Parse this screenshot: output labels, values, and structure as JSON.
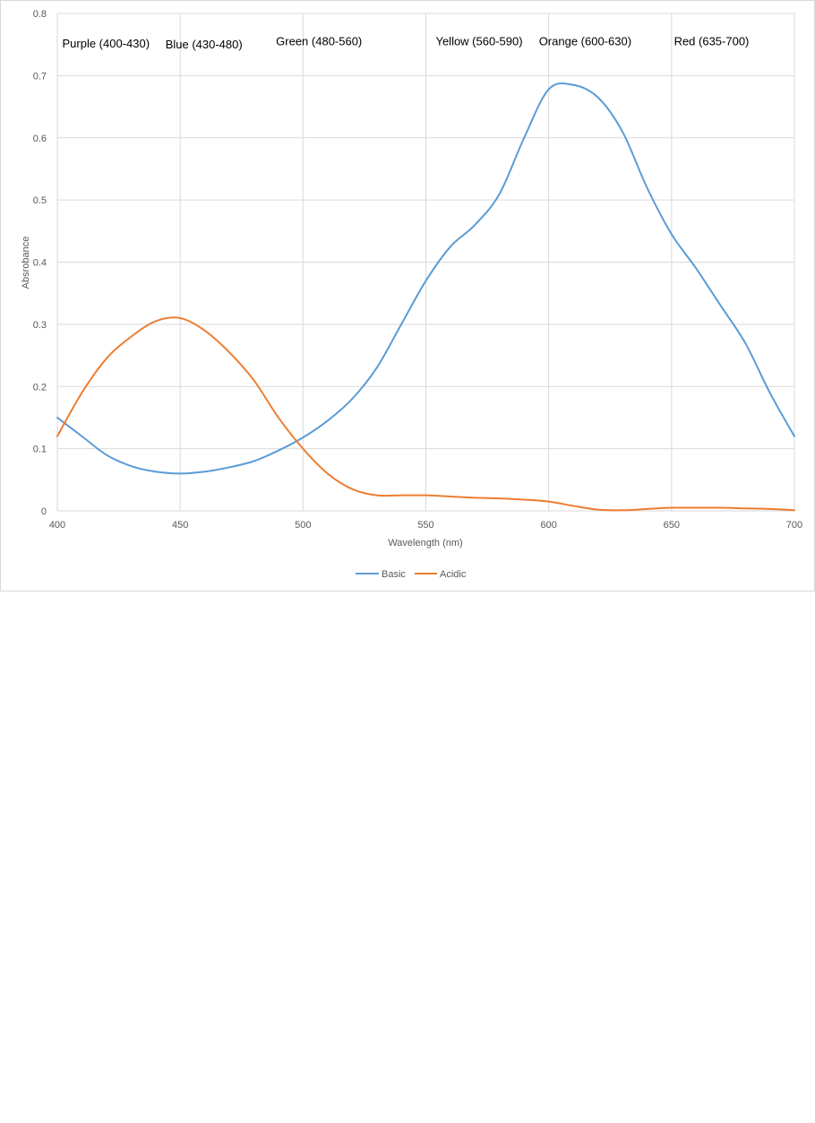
{
  "chart_data": {
    "type": "line",
    "title": "",
    "xlabel": "Wavelength (nm)",
    "ylabel": "Absrobance",
    "xlim": [
      400,
      700
    ],
    "ylim": [
      0,
      0.8
    ],
    "x_ticks": [
      400,
      450,
      500,
      550,
      600,
      650,
      700
    ],
    "y_ticks": [
      0,
      0.1,
      0.2,
      0.3,
      0.4,
      0.5,
      0.6,
      0.7,
      0.8
    ],
    "x_tick_labels": [
      "400",
      "450",
      "500",
      "550",
      "600",
      "650",
      "700"
    ],
    "y_tick_labels": [
      "0",
      "0.1",
      "0.2",
      "0.3",
      "0.4",
      "0.5",
      "0.6",
      "0.7",
      "0.8"
    ],
    "grid": true,
    "legend_position": "bottom",
    "annotations": [
      {
        "text": "Purple (400-430)",
        "x": 402,
        "y": 0.745
      },
      {
        "text": "Blue (430-480)",
        "x": 444,
        "y": 0.744
      },
      {
        "text": "Green (480-560)",
        "x": 489,
        "y": 0.749
      },
      {
        "text": "Yellow (560-590)",
        "x": 554,
        "y": 0.749
      },
      {
        "text": "Orange (600-630)",
        "x": 596,
        "y": 0.749
      },
      {
        "text": "Red (635-700)",
        "x": 651,
        "y": 0.749
      }
    ],
    "series": [
      {
        "name": "Basic",
        "color": "#5b9bd5",
        "x": [
          400,
          410,
          420,
          430,
          440,
          450,
          460,
          470,
          480,
          490,
          500,
          510,
          520,
          530,
          540,
          550,
          560,
          570,
          580,
          590,
          600,
          610,
          620,
          630,
          640,
          650,
          660,
          670,
          680,
          690,
          700
        ],
        "y": [
          0.15,
          0.12,
          0.09,
          0.072,
          0.063,
          0.06,
          0.063,
          0.07,
          0.08,
          0.097,
          0.118,
          0.145,
          0.18,
          0.23,
          0.3,
          0.37,
          0.425,
          0.46,
          0.51,
          0.6,
          0.678,
          0.685,
          0.665,
          0.61,
          0.52,
          0.445,
          0.39,
          0.33,
          0.27,
          0.19,
          0.12
        ]
      },
      {
        "name": "Acidic",
        "color": "#ed7d31",
        "x": [
          400,
          410,
          420,
          430,
          440,
          450,
          460,
          470,
          480,
          490,
          500,
          510,
          520,
          530,
          540,
          550,
          560,
          570,
          580,
          590,
          600,
          610,
          620,
          630,
          640,
          650,
          660,
          670,
          680,
          690,
          700
        ],
        "y": [
          0.12,
          0.19,
          0.245,
          0.28,
          0.305,
          0.31,
          0.29,
          0.255,
          0.21,
          0.15,
          0.1,
          0.06,
          0.035,
          0.025,
          0.025,
          0.025,
          0.023,
          0.021,
          0.02,
          0.018,
          0.015,
          0.008,
          0.002,
          0.001,
          0.003,
          0.005,
          0.005,
          0.005,
          0.004,
          0.003,
          0.001
        ]
      }
    ]
  }
}
